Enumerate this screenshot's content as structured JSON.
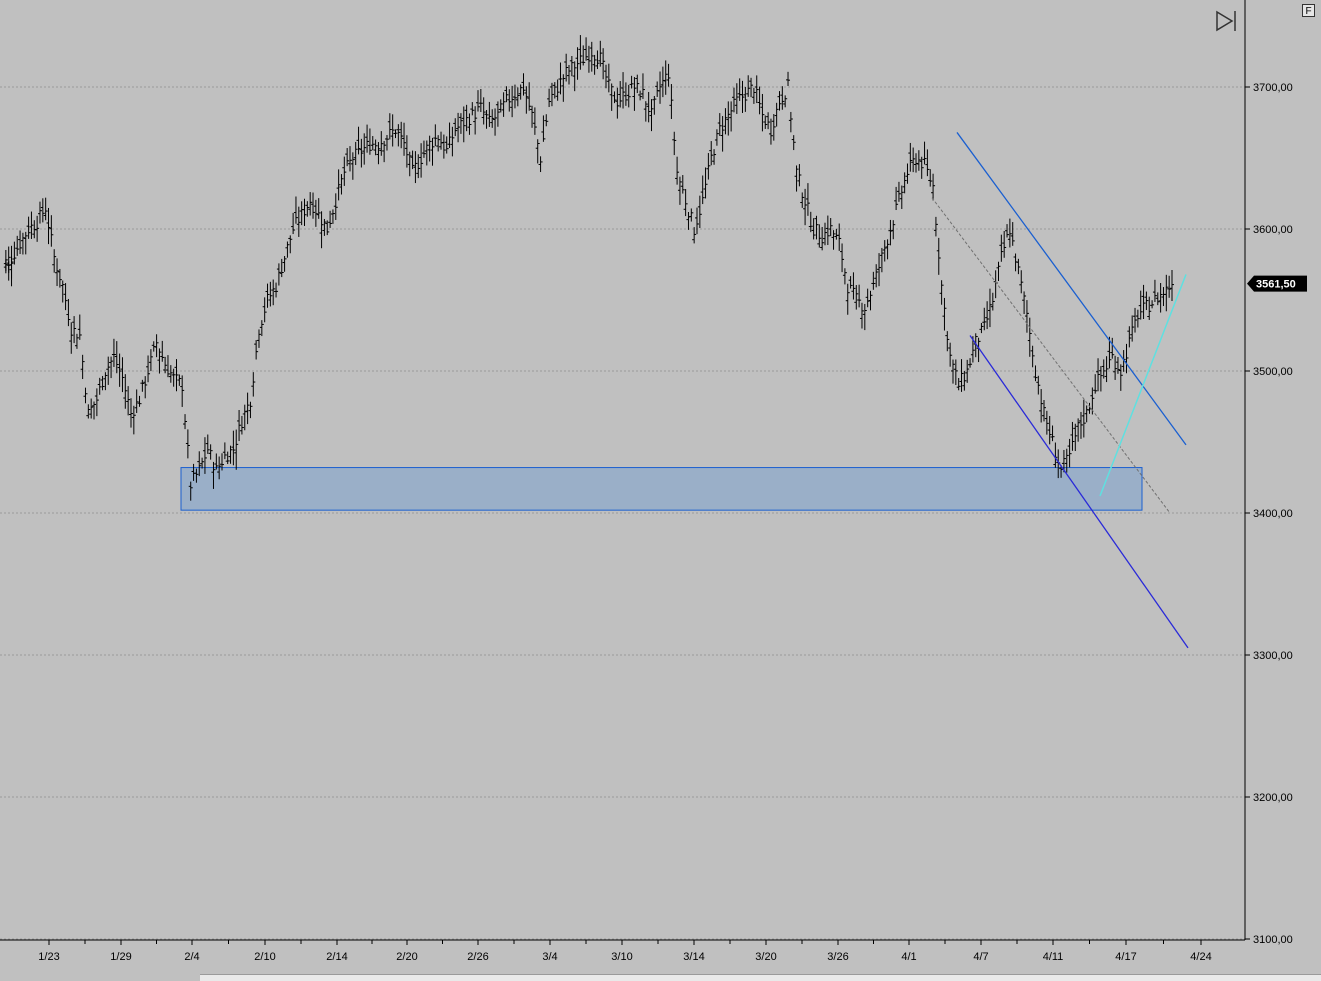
{
  "toolbar": {
    "format_button_label": "F"
  },
  "chart_data": {
    "type": "ohlc",
    "title": "",
    "xlabel": "",
    "ylabel": "",
    "ylim": [
      3100,
      3750
    ],
    "y_ticks": [
      "3700,00",
      "3600,00",
      "3500,00",
      "3400,00",
      "3300,00",
      "3200,00",
      "3100,00"
    ],
    "y_tick_values": [
      3700,
      3600,
      3500,
      3400,
      3300,
      3200,
      3100
    ],
    "x_ticks": [
      "1/23",
      "1/29",
      "2/4",
      "2/10",
      "2/14",
      "2/20",
      "2/26",
      "3/4",
      "3/10",
      "3/14",
      "3/20",
      "3/26",
      "4/1",
      "4/7",
      "4/11",
      "4/17",
      "4/24"
    ],
    "grid": true,
    "last_price": 3561.5,
    "last_price_label": "3561,50",
    "colors": {
      "background": "#c0c0c0",
      "bars": "#000000",
      "grid": "#9a9a9a",
      "support_zone_fill": "#9aafc8",
      "support_zone_border": "#1a5fd0",
      "channel_upper": "#1a5fd0",
      "channel_lower": "#2a2ad8",
      "channel_mid": "#707070",
      "uptrend_line": "#5fe0e0"
    },
    "series": [
      {
        "values": [
          3575,
          3580,
          3590,
          3600,
          3605,
          3615,
          3580,
          3560,
          3530,
          3525,
          3470,
          3480,
          3500,
          3510,
          3495,
          3470,
          3480,
          3500,
          3520,
          3505,
          3495,
          3490,
          3420,
          3430,
          3445,
          3430,
          3440,
          3445,
          3465,
          3480,
          3530,
          3550,
          3560,
          3580,
          3600,
          3610,
          3620,
          3610,
          3600,
          3620,
          3640,
          3650,
          3655,
          3660,
          3660,
          3665,
          3670,
          3660,
          3640,
          3650,
          3660,
          3665,
          3655,
          3670,
          3675,
          3680,
          3685,
          3675,
          3680,
          3690,
          3695,
          3700,
          3680,
          3650,
          3690,
          3700,
          3710,
          3715,
          3720,
          3725,
          3720,
          3700,
          3690,
          3695,
          3700,
          3695,
          3680,
          3700,
          3710,
          3640,
          3620,
          3600,
          3620,
          3650,
          3670,
          3680,
          3690,
          3695,
          3700,
          3680,
          3670,
          3690,
          3700,
          3640,
          3620,
          3600,
          3595,
          3600,
          3590,
          3560,
          3550,
          3545,
          3560,
          3580,
          3600,
          3620,
          3640,
          3650,
          3645,
          3630,
          3560,
          3510,
          3490,
          3500,
          3520,
          3530,
          3550,
          3580,
          3600,
          3570,
          3540,
          3500,
          3470,
          3450,
          3430,
          3440,
          3460,
          3470,
          3490,
          3500,
          3510,
          3500,
          3520,
          3540,
          3545,
          3550,
          3555,
          3562
        ]
      }
    ],
    "annotations": {
      "support_zone": {
        "y_top": 3432,
        "y_bottom": 3402,
        "x_start": "2/4",
        "x_end": "4/17"
      },
      "upper_channel": {
        "from": [
          "4/4",
          3668
        ],
        "to": [
          "4/23",
          3448
        ]
      },
      "lower_channel": {
        "from": [
          "4/6",
          3525
        ],
        "to": [
          "4/24",
          3305
        ]
      },
      "mid_channel": {
        "from": [
          "4/3",
          3622
        ],
        "to": [
          "4/21",
          3400
        ]
      },
      "uptrend": {
        "from": [
          "4/15",
          3412
        ],
        "to": [
          "4/23",
          3568
        ]
      }
    }
  }
}
